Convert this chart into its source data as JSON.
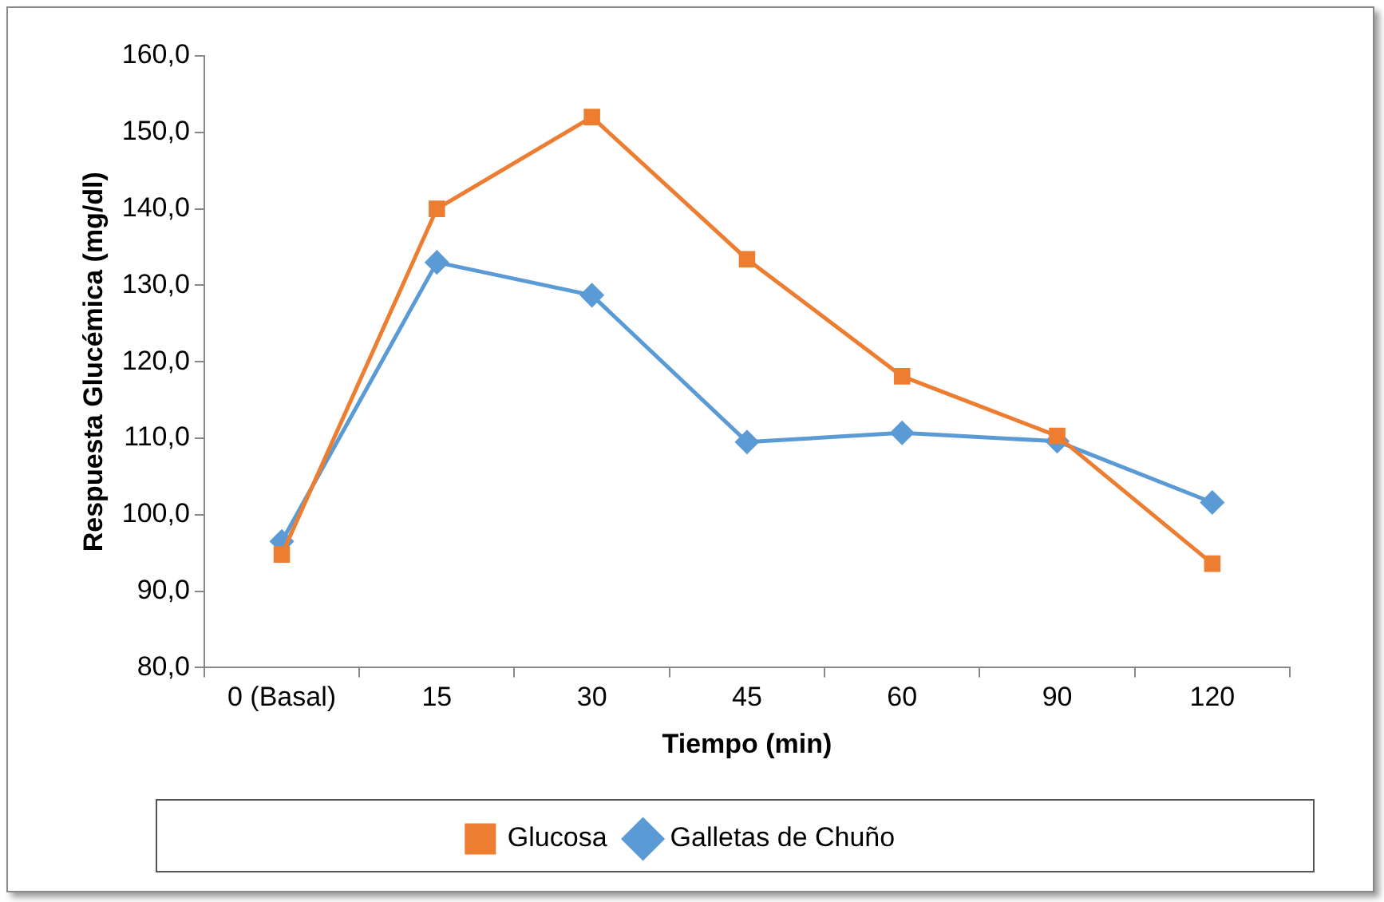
{
  "chart_data": {
    "type": "line",
    "xlabel": "Tiempo (min)",
    "ylabel": "Respuesta Glucémica (mg/dl)",
    "categories": [
      "0 (Basal)",
      "15",
      "30",
      "45",
      "60",
      "90",
      "120"
    ],
    "series": [
      {
        "name": "Galletas de Chuño",
        "color": "#5b9bd5",
        "marker": "diamond",
        "values": [
          96.5,
          133.0,
          128.7,
          109.5,
          110.7,
          109.6,
          101.6
        ]
      },
      {
        "name": "Glucosa",
        "color": "#ed7d31",
        "marker": "square",
        "values": [
          94.8,
          140.0,
          152.0,
          133.4,
          118.1,
          110.3,
          93.6
        ]
      }
    ],
    "ylim": [
      80,
      160
    ],
    "yticks": [
      {
        "value": 80,
        "label": "80,0"
      },
      {
        "value": 90,
        "label": "90,0"
      },
      {
        "value": 100,
        "label": "100,0"
      },
      {
        "value": 110,
        "label": "110,0"
      },
      {
        "value": 120,
        "label": "120,0"
      },
      {
        "value": 130,
        "label": "130,0"
      },
      {
        "value": 140,
        "label": "140,0"
      },
      {
        "value": 150,
        "label": "150,0"
      },
      {
        "value": 160,
        "label": "160,0"
      }
    ],
    "grid": false,
    "legend": "bottom",
    "line_style": "solid"
  }
}
